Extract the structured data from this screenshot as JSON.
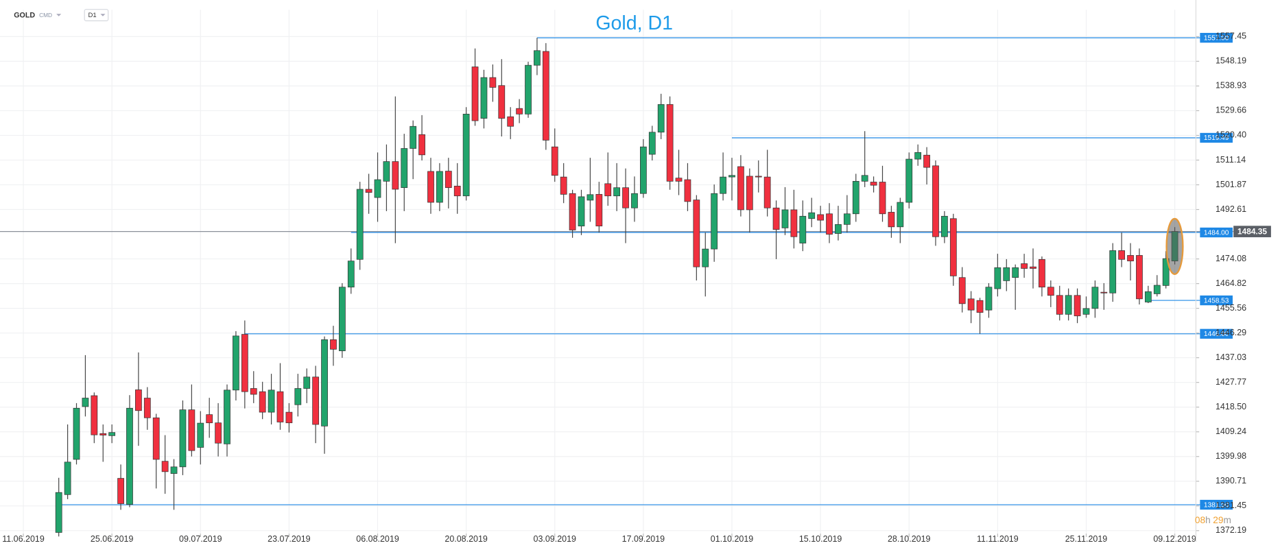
{
  "toolbar": {
    "symbol": "GOLD",
    "market": "CMD",
    "interval": "D1"
  },
  "chart_data": {
    "type": "candlestick",
    "title": "Gold, D1",
    "up_color": "#22a46c",
    "down_color": "#f0303f",
    "level_color": "#1e88e5",
    "grid": true,
    "open": [
      1371.5,
      1385.7,
      1398.9,
      1418.7,
      1422.8,
      1408.6,
      1407.8,
      1391.8,
      1382,
      1425,
      1421.9,
      1414.5,
      1398.2,
      1393.6,
      1396.1,
      1417.5,
      1403.4,
      1415.7,
      1412.6,
      1404.7,
      1424.9,
      1445.8,
      1425.5,
      1424.3,
      1416.6,
      1424.3,
      1416.6,
      1419.4,
      1425.5,
      1429.8,
      1411.4,
      1443.8,
      1439.6,
      1463.5,
      1473.9,
      1500.2,
      1497.1,
      1503.2,
      1510.6,
      1500.8,
      1515.5,
      1520.7,
      1506.9,
      1495.3,
      1507,
      1501.4,
      1497.7,
      1546.1,
      1526.8,
      1542.1,
      1539.1,
      1527.4,
      1530.5,
      1528.4,
      1546.7,
      1551.9,
      1516.1,
      1504.8,
      1498.6,
      1486.4,
      1496.1,
      1498.3,
      1502.3,
      1497.7,
      1500.8,
      1493.2,
      1498.6,
      1513.3,
      1521.6,
      1532,
      1504.4,
      1503.8,
      1496.2,
      1471.1,
      1477.8,
      1498.6,
      1504.8,
      1508.7,
      1505.1,
      1505.1,
      1504.8,
      1493.2,
      1485.7,
      1492.5,
      1480,
      1489.2,
      1490.7,
      1491,
      1483.6,
      1487,
      1491,
      1503.2,
      1502.9,
      1502.9,
      1491.6,
      1486.1,
      1495.3,
      1511.5,
      1513,
      1509,
      1482.4,
      1489.2,
      1467.1,
      1459.1,
      1458.5,
      1454.9,
      1462.9,
      1465.9,
      1467.1,
      1472.3,
      1471.1,
      1473.9,
      1463.5,
      1460.4,
      1453.3,
      1460.4,
      1453.3,
      1455.5,
      1461.6,
      1461.3,
      1477.2,
      1475.4,
      1475.4,
      1457.9,
      1461,
      1464.1,
      1473.3
    ],
    "high": [
      1392,
      1412,
      1420,
      1438,
      1424,
      1412,
      1412,
      1397,
      1423,
      1439,
      1426,
      1416,
      1408,
      1399,
      1421,
      1427,
      1417,
      1422,
      1420,
      1427,
      1447,
      1451,
      1432,
      1428,
      1431,
      1435,
      1420,
      1431,
      1433,
      1434,
      1445,
      1449,
      1465,
      1478,
      1503,
      1506,
      1514,
      1517,
      1535,
      1521,
      1526,
      1528,
      1512,
      1510,
      1512,
      1510,
      1531,
      1553,
      1545,
      1547,
      1549,
      1531,
      1534,
      1548,
      1557,
      1555,
      1523,
      1510,
      1500,
      1500,
      1512,
      1503,
      1514,
      1510,
      1508,
      1505,
      1519,
      1524,
      1536,
      1535,
      1515,
      1510,
      1498,
      1484,
      1502,
      1514,
      1512,
      1513,
      1508,
      1511,
      1515,
      1496,
      1501,
      1500,
      1496,
      1497,
      1494,
      1495,
      1494,
      1498,
      1506,
      1522,
      1505,
      1509,
      1494,
      1497,
      1514,
      1517,
      1516,
      1511,
      1492,
      1491,
      1471,
      1462,
      1459.5,
      1465,
      1476,
      1474,
      1472,
      1476,
      1478,
      1475,
      1466,
      1464,
      1463,
      1463,
      1460,
      1466,
      1465,
      1480,
      1484,
      1480,
      1478,
      1464,
      1468,
      1477,
      1486
    ],
    "low": [
      1370,
      1384,
      1397,
      1415,
      1405,
      1398,
      1405,
      1380,
      1381,
      1404,
      1410,
      1388,
      1386,
      1380,
      1393,
      1400,
      1397,
      1407,
      1400,
      1400,
      1421,
      1418,
      1420,
      1414,
      1412,
      1410,
      1409,
      1415,
      1420,
      1405,
      1401,
      1434,
      1437,
      1461,
      1470,
      1491,
      1488,
      1492,
      1480,
      1492,
      1504,
      1511,
      1491,
      1492,
      1493,
      1491,
      1496,
      1524,
      1523,
      1533,
      1520,
      1519,
      1525,
      1527,
      1543,
      1515,
      1503,
      1495,
      1482,
      1483,
      1488,
      1484,
      1494,
      1492,
      1480,
      1488,
      1497,
      1511,
      1519,
      1500,
      1498,
      1492,
      1466,
      1460,
      1473,
      1496,
      1496,
      1490,
      1484,
      1499,
      1490,
      1474,
      1483,
      1478,
      1477,
      1486,
      1484,
      1480,
      1481,
      1484,
      1488,
      1501,
      1499,
      1488,
      1482,
      1480,
      1493,
      1509,
      1502,
      1479,
      1480,
      1464,
      1454,
      1450,
      1446,
      1452,
      1460,
      1462,
      1455,
      1467,
      1463,
      1460,
      1456,
      1451,
      1451,
      1450,
      1452,
      1452,
      1455,
      1458,
      1471,
      1466,
      1457,
      1457.5,
      1460,
      1463,
      1472
    ],
    "close": [
      1386.5,
      1397.9,
      1418.1,
      1421.9,
      1408.1,
      1408,
      1409,
      1382.3,
      1418.1,
      1417.2,
      1414.5,
      1398.9,
      1394.3,
      1396.1,
      1417.5,
      1402.2,
      1412.5,
      1412.6,
      1405,
      1424.9,
      1445.2,
      1424.3,
      1423.3,
      1416.6,
      1424.9,
      1412.9,
      1412.6,
      1425.5,
      1429.8,
      1412,
      1443.8,
      1440.2,
      1463.5,
      1473.3,
      1500.2,
      1499,
      1503.8,
      1510.6,
      1500.2,
      1515.5,
      1523.8,
      1513.1,
      1495.3,
      1506.9,
      1500.8,
      1497.7,
      1528.4,
      1525.9,
      1542.1,
      1538.4,
      1526.8,
      1523.8,
      1528.4,
      1546.7,
      1552.2,
      1518.6,
      1505.4,
      1498.3,
      1484.9,
      1497.4,
      1498.2,
      1486.4,
      1497.7,
      1500.8,
      1493.2,
      1498.6,
      1516.1,
      1521.6,
      1532,
      1503.2,
      1503.2,
      1495.6,
      1471.1,
      1477.8,
      1498.6,
      1504.8,
      1505.4,
      1492.5,
      1492.5,
      1504.8,
      1493.2,
      1485.1,
      1492.5,
      1482.4,
      1490.1,
      1491.4,
      1488.6,
      1483.3,
      1487,
      1491,
      1503.2,
      1505.4,
      1501.7,
      1491,
      1486.1,
      1495.3,
      1511.5,
      1514,
      1508.4,
      1482.4,
      1490.1,
      1467.7,
      1457.3,
      1454.9,
      1454,
      1463.5,
      1470.8,
      1470.8,
      1470.8,
      1470.5,
      1470.5,
      1463.5,
      1460.4,
      1453.3,
      1460.4,
      1452.7,
      1455.5,
      1463.5,
      1461.3,
      1477.2,
      1473.9,
      1473.3,
      1459.1,
      1461.8,
      1464.2,
      1474.2,
      1484.35
    ],
    "ylim": [
      1368,
      1567.5
    ],
    "yticks": [
      1557.45,
      1548.19,
      1538.93,
      1529.66,
      {
        "value": 1520.4,
        "label": "1520.40"
      },
      1511.14,
      1501.87,
      1492.61,
      1474.08,
      1464.82,
      1455.56,
      1446.29,
      1437.03,
      1427.77,
      {
        "value": 1418.5,
        "label": "1418.50"
      },
      1409.24,
      1399.98,
      1390.71,
      1381.45,
      1372.19
    ],
    "xticks": [
      {
        "value": -4,
        "label": "11.06.2019"
      },
      {
        "value": 6,
        "label": "25.06.2019"
      },
      {
        "value": 16,
        "label": "09.07.2019"
      },
      {
        "value": 26,
        "label": "23.07.2019"
      },
      {
        "value": 36,
        "label": "06.08.2019"
      },
      {
        "value": 46,
        "label": "20.08.2019"
      },
      {
        "value": 56,
        "label": "03.09.2019"
      },
      {
        "value": 66,
        "label": "17.09.2019"
      },
      {
        "value": 76,
        "label": "01.10.2019"
      },
      {
        "value": 86,
        "label": "15.10.2019"
      },
      {
        "value": 96,
        "label": "28.10.2019"
      },
      {
        "value": 106,
        "label": "11.11.2019"
      },
      {
        "value": 116,
        "label": "25.11.2019"
      },
      {
        "value": 126,
        "label": "09.12.2019"
      }
    ],
    "levels": [
      {
        "value": 1557,
        "label": "1557.00",
        "from": 54
      },
      {
        "value": 1519.49,
        "label": "1519.49",
        "from": 76
      },
      {
        "value": 1484,
        "label": "1484.00",
        "from": 33
      },
      {
        "value": 1458.53,
        "label": "1458.53",
        "from": 123
      },
      {
        "value": 1446,
        "label": "1446.00",
        "from": 21
      },
      {
        "value": 1381.9,
        "label": "1381.90",
        "from": 0
      }
    ],
    "last_price": 1484.35,
    "countdown": [
      "08",
      "h",
      "29",
      "m"
    ]
  }
}
